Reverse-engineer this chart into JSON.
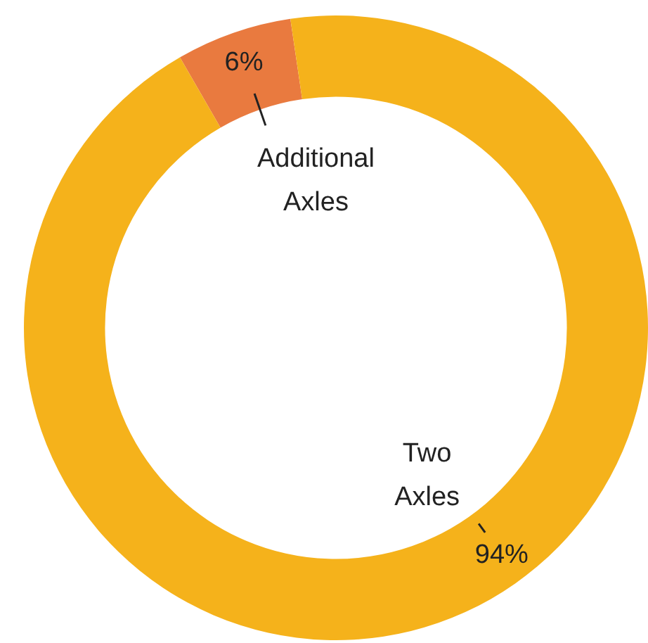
{
  "chart_data": {
    "type": "donut",
    "categories": [
      "Additional Axles",
      "Two Axles"
    ],
    "values": [
      6,
      94
    ],
    "colors": [
      "#e97a3f",
      "#f5b21b"
    ],
    "value_labels": [
      "6%",
      "94%"
    ],
    "legend": false
  }
}
